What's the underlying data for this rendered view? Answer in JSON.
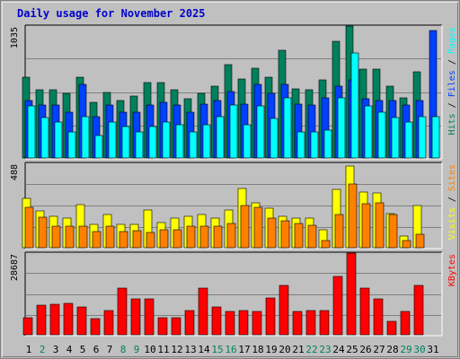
{
  "title": "Daily usage for November 2025",
  "colors": {
    "hits": "#00805c",
    "files": "#0040ff",
    "pages": "#00ffff",
    "visits": "#ffff00",
    "sites": "#ff8000",
    "kbytes": "#ff0000",
    "weekend_day": "#00805c",
    "weekday": "#000000"
  },
  "chart_data": [
    {
      "type": "bar",
      "panel": "hits-files-pages",
      "max_label": "1035",
      "ymax": 1035,
      "legend": [
        {
          "text": "Hits",
          "color": "#00805c"
        },
        {
          "text": " / ",
          "color": "#000000"
        },
        {
          "text": "Files",
          "color": "#0040ff"
        },
        {
          "text": " / ",
          "color": "#000000"
        },
        {
          "text": "Pages",
          "color": "#00ffff"
        }
      ],
      "categories": [
        "1",
        "2",
        "3",
        "4",
        "5",
        "6",
        "7",
        "8",
        "9",
        "10",
        "11",
        "12",
        "13",
        "14",
        "15",
        "16",
        "17",
        "18",
        "19",
        "20",
        "21",
        "22",
        "23",
        "24",
        "25",
        "26",
        "27",
        "28",
        "29",
        "30",
        "31"
      ],
      "series": [
        {
          "name": "Hits",
          "color": "#00805c",
          "values": [
            635,
            534,
            534,
            508,
            635,
            436,
            514,
            453,
            483,
            589,
            589,
            534,
            464,
            508,
            565,
            730,
            621,
            707,
            635,
            843,
            544,
            534,
            614,
            913,
            1035,
            694,
            694,
            565,
            470,
            673,
            0
          ]
        },
        {
          "name": "Files",
          "color": "#0040ff",
          "values": [
            453,
            414,
            414,
            359,
            579,
            325,
            414,
            359,
            359,
            414,
            436,
            414,
            359,
            425,
            453,
            518,
            425,
            579,
            508,
            579,
            420,
            414,
            470,
            565,
            611,
            464,
            453,
            453,
            414,
            453,
            1000
          ]
        },
        {
          "name": "Pages",
          "color": "#00ffff",
          "values": [
            409,
            319,
            281,
            206,
            325,
            174,
            281,
            248,
            206,
            248,
            281,
            258,
            206,
            258,
            325,
            413,
            263,
            409,
            312,
            470,
            206,
            206,
            220,
            470,
            825,
            409,
            359,
            319,
            281,
            325,
            325
          ]
        }
      ]
    },
    {
      "type": "bar",
      "panel": "visits-sites",
      "max_label": "488",
      "ymax": 488,
      "legend": [
        {
          "text": "Visits",
          "color": "#ffff00"
        },
        {
          "text": " / ",
          "color": "#000000"
        },
        {
          "text": "Sites",
          "color": "#ff8000"
        }
      ],
      "categories": [
        "1",
        "2",
        "3",
        "4",
        "5",
        "6",
        "7",
        "8",
        "9",
        "10",
        "11",
        "12",
        "13",
        "14",
        "15",
        "16",
        "17",
        "18",
        "19",
        "20",
        "21",
        "22",
        "23",
        "24",
        "25",
        "26",
        "27",
        "28",
        "29",
        "30",
        "31"
      ],
      "series": [
        {
          "name": "Visits",
          "color": "#ffff00",
          "values": [
            284,
            215,
            181,
            171,
            250,
            137,
            191,
            137,
            137,
            220,
            146,
            171,
            181,
            191,
            171,
            220,
            343,
            259,
            230,
            181,
            171,
            171,
            103,
            338,
            474,
            323,
            318,
            196,
            69,
            245,
            0
          ]
        },
        {
          "name": "Sites",
          "color": "#ff8000",
          "values": [
            233,
            177,
            127,
            127,
            127,
            93,
            127,
            93,
            98,
            88,
            103,
            103,
            127,
            127,
            127,
            142,
            245,
            235,
            171,
            157,
            142,
            132,
            44,
            191,
            367,
            255,
            260,
            191,
            44,
            78,
            0
          ]
        }
      ]
    },
    {
      "type": "bar",
      "panel": "kbytes",
      "max_label": "28687",
      "ymax": 28687,
      "legend": [
        {
          "text": "KBytes",
          "color": "#ff0000"
        }
      ],
      "categories": [
        "1",
        "2",
        "3",
        "4",
        "5",
        "6",
        "7",
        "8",
        "9",
        "10",
        "11",
        "12",
        "13",
        "14",
        "15",
        "16",
        "17",
        "18",
        "19",
        "20",
        "21",
        "22",
        "23",
        "24",
        "25",
        "26",
        "27",
        "28",
        "29",
        "30",
        "31"
      ],
      "series": [
        {
          "name": "KBytes",
          "color": "#ff0000",
          "values": [
            6124,
            10373,
            10860,
            11065,
            9732,
            5710,
            8599,
            16306,
            12493,
            12493,
            6124,
            6124,
            8599,
            16306,
            9732,
            8086,
            8599,
            8086,
            13006,
            17227,
            8086,
            8599,
            8599,
            20500,
            28687,
            16306,
            12493,
            4686,
            8086,
            17227,
            0
          ]
        }
      ]
    }
  ],
  "days": [
    {
      "label": "1",
      "weekend": false
    },
    {
      "label": "2",
      "weekend": true
    },
    {
      "label": "3",
      "weekend": false
    },
    {
      "label": "4",
      "weekend": false
    },
    {
      "label": "5",
      "weekend": false
    },
    {
      "label": "6",
      "weekend": false
    },
    {
      "label": "7",
      "weekend": false
    },
    {
      "label": "8",
      "weekend": true
    },
    {
      "label": "9",
      "weekend": true
    },
    {
      "label": "10",
      "weekend": false
    },
    {
      "label": "11",
      "weekend": false
    },
    {
      "label": "12",
      "weekend": false
    },
    {
      "label": "13",
      "weekend": false
    },
    {
      "label": "14",
      "weekend": false
    },
    {
      "label": "15",
      "weekend": true
    },
    {
      "label": "16",
      "weekend": true
    },
    {
      "label": "17",
      "weekend": false
    },
    {
      "label": "18",
      "weekend": false
    },
    {
      "label": "19",
      "weekend": false
    },
    {
      "label": "20",
      "weekend": false
    },
    {
      "label": "21",
      "weekend": false
    },
    {
      "label": "22",
      "weekend": true
    },
    {
      "label": "23",
      "weekend": true
    },
    {
      "label": "24",
      "weekend": false
    },
    {
      "label": "25",
      "weekend": false
    },
    {
      "label": "26",
      "weekend": false
    },
    {
      "label": "27",
      "weekend": false
    },
    {
      "label": "28",
      "weekend": false
    },
    {
      "label": "29",
      "weekend": true
    },
    {
      "label": "30",
      "weekend": true
    },
    {
      "label": "31",
      "weekend": false
    }
  ]
}
